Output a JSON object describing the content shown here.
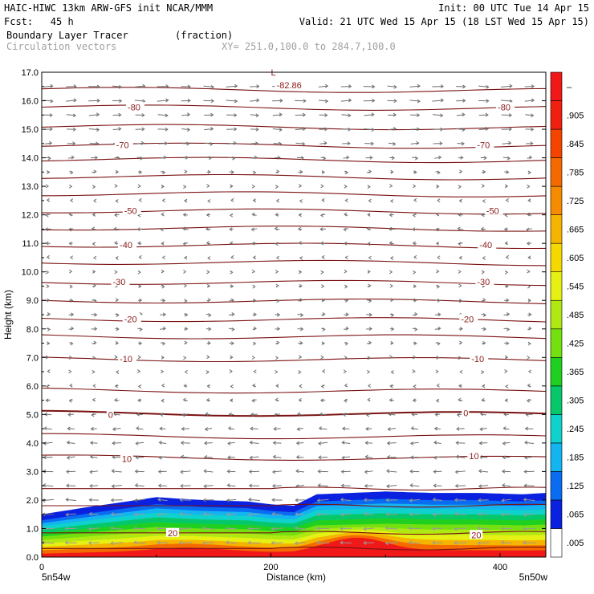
{
  "header": {
    "line1_left": "HAIC-HIWC 13km ARW-GFS init   NCAR/MMM",
    "line1_right": "Init: 00 UTC Tue 14 Apr 15",
    "line2_left": "Fcst:   45 h",
    "line2_right": "Valid: 21 UTC Wed 15 Apr 15 (18 LST Wed 15 Apr 15)",
    "line3_left": "Boundary Layer Tracer",
    "line3_mid": "(fraction)",
    "line4_left": "Circulation vectors",
    "line4_right": "XY= 251.0,100.0 to 284.7,100.0"
  },
  "footer": {
    "left_label": "5n54w",
    "right_label": "5n50w"
  },
  "chart_data": {
    "type": "heatmap",
    "xlabel": "Distance (km)",
    "ylabel": "Height (km)",
    "xlim": [
      0,
      440
    ],
    "ylim": [
      0,
      17
    ],
    "x_ticks": [
      0,
      200,
      400
    ],
    "y_ticks": [
      0.0,
      1.0,
      2.0,
      3.0,
      4.0,
      5.0,
      6.0,
      7.0,
      8.0,
      9.0,
      10.0,
      11.0,
      12.0,
      13.0,
      14.0,
      15.0,
      16.0,
      17.0
    ],
    "colorbar": {
      "labels": [
        ".005",
        ".065",
        ".125",
        ".185",
        ".245",
        ".305",
        ".365",
        ".425",
        ".485",
        ".545",
        ".605",
        ".665",
        ".725",
        ".785",
        ".845",
        ".905",
        "–"
      ],
      "colors": [
        "#ffffff",
        "#0a22e0",
        "#0a6cf0",
        "#14b4f0",
        "#10d2cc",
        "#06c86a",
        "#20d020",
        "#74e010",
        "#b0e814",
        "#e6f014",
        "#f5d800",
        "#f5b400",
        "#f58c00",
        "#f56a00",
        "#f54400",
        "#f02010",
        "#f01818"
      ]
    },
    "field": {
      "name": "Boundary Layer Tracer (fraction)",
      "top_height_km": [
        1.5,
        1.75,
        2.1,
        2.0,
        1.95,
        1.85,
        1.8,
        2.2,
        2.3,
        2.25,
        2.25,
        2.2,
        2.25
      ],
      "top_x_km": [
        0,
        40,
        100,
        140,
        180,
        200,
        220,
        240,
        300,
        340,
        380,
        420,
        440
      ]
    },
    "contour_labels": [
      {
        "text": "-80",
        "x": 75,
        "y": 15.78
      },
      {
        "text": "-80",
        "x": 398,
        "y": 15.78
      },
      {
        "text": "-70",
        "x": 65,
        "y": 14.45
      },
      {
        "text": "-70",
        "x": 380,
        "y": 14.45
      },
      {
        "text": "-50",
        "x": 72,
        "y": 12.15
      },
      {
        "text": "-50",
        "x": 388,
        "y": 12.15
      },
      {
        "text": "-40",
        "x": 68,
        "y": 10.95
      },
      {
        "text": "-40",
        "x": 382,
        "y": 10.95
      },
      {
        "text": "-30",
        "x": 62,
        "y": 9.65
      },
      {
        "text": "-30",
        "x": 380,
        "y": 9.65
      },
      {
        "text": "-20",
        "x": 72,
        "y": 8.35
      },
      {
        "text": "-20",
        "x": 366,
        "y": 8.35
      },
      {
        "text": "-10",
        "x": 68,
        "y": 6.95
      },
      {
        "text": "-10",
        "x": 375,
        "y": 6.95
      },
      {
        "text": "0",
        "x": 58,
        "y": 5.0
      },
      {
        "text": "0",
        "x": 368,
        "y": 5.05
      },
      {
        "text": "10",
        "x": 70,
        "y": 3.45
      },
      {
        "text": "10",
        "x": 373,
        "y": 3.55
      },
      {
        "text": "20",
        "x": 110,
        "y": 0.85
      },
      {
        "text": "20",
        "x": 375,
        "y": 0.78
      },
      {
        "text": "L",
        "x": 200,
        "y": 17.0
      },
      {
        "text": "-82.86",
        "x": 205,
        "y": 16.55
      }
    ],
    "isotherm_heights_km": [
      0.3,
      0.85,
      1.8,
      2.4,
      3.5,
      4.25,
      5.05,
      5.85,
      6.95,
      7.75,
      8.35,
      9.0,
      9.65,
      10.35,
      10.95,
      11.55,
      12.15,
      12.75,
      13.35,
      13.95,
      14.45,
      15.1,
      15.78,
      16.4
    ],
    "vectors": {
      "columns_km": [
        0,
        20,
        40,
        60,
        80,
        100,
        120,
        140,
        160,
        180,
        200,
        220,
        240,
        260,
        280,
        300,
        320,
        340,
        360,
        380,
        400,
        420,
        440
      ],
      "rows_km": [
        0.5,
        1.0,
        1.5,
        2.0,
        2.5,
        3.0,
        3.5,
        4.0,
        4.5,
        5.0,
        5.5,
        6.0,
        6.5,
        7.0,
        7.5,
        8.0,
        8.5,
        9.0,
        9.5,
        10.0,
        10.5,
        11.0,
        11.5,
        12.0,
        12.5,
        13.0,
        13.5,
        14.0,
        14.5,
        15.0,
        15.5,
        16.0,
        16.5
      ],
      "u_by_row": [
        -1.0,
        -1.0,
        -0.9,
        -0.9,
        -0.8,
        -0.8,
        -0.7,
        -0.7,
        -0.6,
        -0.5,
        -0.3,
        -0.2,
        0.0,
        0.1,
        0.3,
        0.4,
        0.4,
        0.3,
        0.2,
        0.1,
        -0.1,
        -0.3,
        -0.4,
        -0.3,
        -0.1,
        0.1,
        0.3,
        0.5,
        0.7,
        0.8,
        0.8,
        0.9,
        0.9
      ]
    }
  }
}
